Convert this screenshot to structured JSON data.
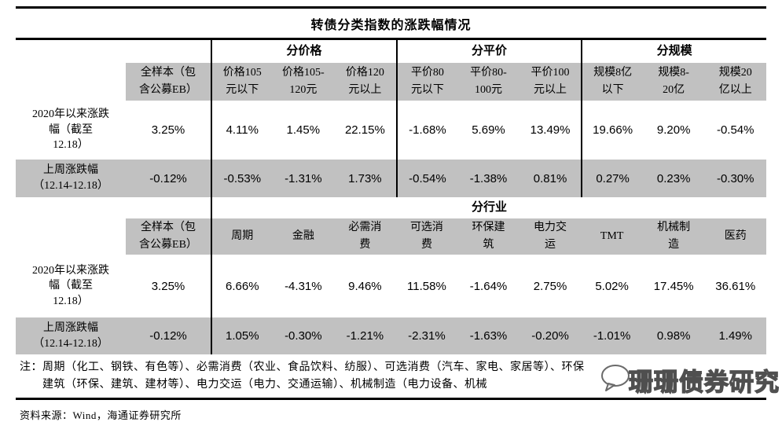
{
  "title": "转债分类指数的涨跌幅情况",
  "colors": {
    "header_gray": "#c1c1c1",
    "rule_black": "#000000"
  },
  "table_price_parity_scale": {
    "groups": [
      "分价格",
      "分平价",
      "分规模"
    ],
    "col_headers": [
      "全样本（包\n含公募EB）",
      "价格105\n元以下",
      "价格105-\n120元",
      "价格120\n元以上",
      "平价80\n元以下",
      "平价80-\n100元",
      "平价100\n元以上",
      "规模8亿\n以下",
      "规模8-\n20亿",
      "规模20\n亿以上"
    ],
    "rows": [
      {
        "label": "2020年以来涨跌\n幅（截至\n12.18）",
        "values": [
          "3.25%",
          "4.11%",
          "1.45%",
          "22.15%",
          "-1.68%",
          "5.69%",
          "13.49%",
          "19.66%",
          "9.20%",
          "-0.54%"
        ]
      },
      {
        "label": "上周涨跌幅\n（12.14-12.18）",
        "values": [
          "-0.12%",
          "-0.53%",
          "-1.31%",
          "1.73%",
          "-0.54%",
          "-1.38%",
          "0.81%",
          "0.27%",
          "0.23%",
          "-0.30%"
        ]
      }
    ]
  },
  "table_industry": {
    "group": "分行业",
    "col_headers": [
      "全样本（包\n含公募EB）",
      "周期",
      "金融",
      "必需消\n费",
      "可选消\n费",
      "环保建\n筑",
      "电力交\n运",
      "TMT",
      "机械制\n造",
      "医药"
    ],
    "rows": [
      {
        "label": "2020年以来涨跌\n幅（截至\n12.18）",
        "values": [
          "3.25%",
          "6.66%",
          "-4.31%",
          "9.46%",
          "11.58%",
          "-1.64%",
          "2.75%",
          "5.02%",
          "17.45%",
          "36.61%"
        ]
      },
      {
        "label": "上周涨跌幅\n（12.14-12.18）",
        "values": [
          "-0.12%",
          "1.05%",
          "-0.30%",
          "-1.21%",
          "-2.31%",
          "-1.63%",
          "-0.20%",
          "-1.01%",
          "0.98%",
          "1.49%"
        ]
      }
    ]
  },
  "note": {
    "prefix": "注：",
    "lines": [
      "周期（化工、钢铁、有色等）、必需消费（农业、食品饮料、纺服）、可选消费（汽车、家电、家居等）、环保",
      "建筑（环保、建筑、建材等）、电力交运（电力、交通运输）、机械制造（电力设备、机械"
    ]
  },
  "source": "资料来源：Wind，海通证券研究所",
  "watermark": {
    "text": "珊珊债券研究",
    "icon": "chat-bubble-icon"
  }
}
